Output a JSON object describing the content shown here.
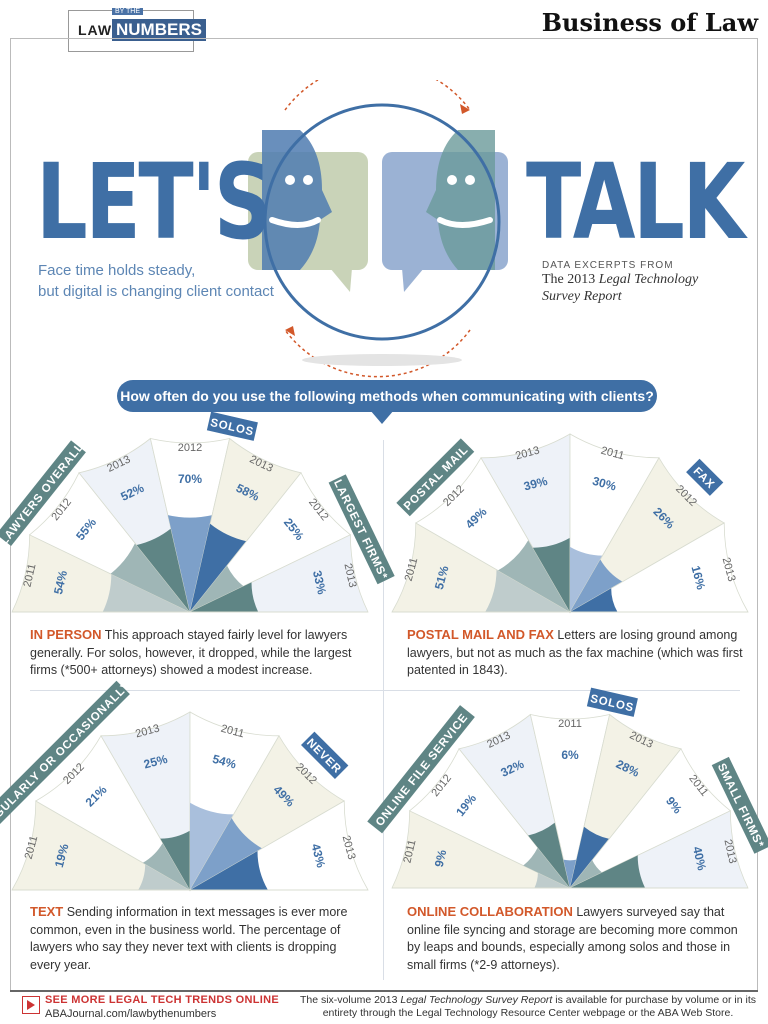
{
  "header": {
    "logo_law": "LAW",
    "logo_bythe": "BY THE",
    "logo_numbers": "NUMBERS",
    "section": "Business of Law"
  },
  "hero": {
    "title_left": "LET'S",
    "title_right": "TALK",
    "tagline_1": "Face time holds steady,",
    "tagline_2": "but digital is changing client contact",
    "excerpt_label": "DATA EXCERPTS FROM",
    "excerpt_report_prefix": "The 2013 ",
    "excerpt_report_italic_1": "Legal Technology",
    "excerpt_report_italic_2": "Survey Report"
  },
  "question": "How often do you use the following methods when communicating with clients?",
  "captions": {
    "in_person": {
      "head": "IN PERSON",
      "text": " This approach stayed fairly level for lawyers generally. For solos, however, it dropped, while the largest firms (*500+ attorneys) showed a modest increase."
    },
    "postal": {
      "head": "POSTAL MAIL AND FAX",
      "text": " Letters are losing ground among lawyers, but not as much as the fax machine (which was first patented in 1843)."
    },
    "text": {
      "head": "TEXT",
      "text": " Sending information in text messages is ever more common, even in the business world. The percentage of lawyers who say they never text with clients is dropping every year."
    },
    "online": {
      "head": "ONLINE COLLABORATION",
      "text": " Lawyers surveyed say that online file syncing and storage are becoming more common by leaps and bounds, especially among solos and those in small firms (*2-9 attorneys)."
    }
  },
  "footer": {
    "more": "SEE MORE LEGAL TECH TRENDS ONLINE",
    "url": "ABAJournal.com/lawbythenumbers",
    "note_prefix": "The six-volume 2013 ",
    "note_italic": "Legal Technology Survey Report",
    "note_suffix": " is available for purchase by volume or in its entirety through the Legal Technology Resource Center webpage or the ABA Web Store."
  },
  "chart_data": [
    {
      "type": "pie",
      "panel": "in_person",
      "title": "IN PERSON",
      "groups": [
        {
          "name": "LAWYERS OVERALL",
          "years": [
            "2011",
            "2012",
            "2013"
          ],
          "values": [
            54,
            55,
            52
          ]
        },
        {
          "name": "SOLOS",
          "years": [
            "2012",
            "2013"
          ],
          "values": [
            70,
            58
          ]
        },
        {
          "name": "LARGEST FIRMS*",
          "years": [
            "2012",
            "2013"
          ],
          "values": [
            25,
            33
          ]
        }
      ]
    },
    {
      "type": "pie",
      "panel": "postal",
      "title": "POSTAL MAIL AND FAX",
      "groups": [
        {
          "name": "POSTAL MAIL",
          "years": [
            "2011",
            "2012",
            "2013"
          ],
          "values": [
            51,
            49,
            39
          ]
        },
        {
          "name": "FAX",
          "years": [
            "2011",
            "2012",
            "2013"
          ],
          "values": [
            30,
            26,
            16
          ]
        }
      ]
    },
    {
      "type": "pie",
      "panel": "text",
      "title": "TEXT",
      "groups": [
        {
          "name": "REGULARLY OR OCCASIONALLY",
          "years": [
            "2011",
            "2012",
            "2013"
          ],
          "values": [
            19,
            21,
            25
          ]
        },
        {
          "name": "NEVER",
          "years": [
            "2011",
            "2012",
            "2013"
          ],
          "values": [
            54,
            49,
            43
          ]
        }
      ]
    },
    {
      "type": "pie",
      "panel": "online",
      "title": "ONLINE COLLABORATION",
      "groups": [
        {
          "name": "ONLINE FILE SERVICE",
          "years": [
            "2011",
            "2012",
            "2013"
          ],
          "values": [
            9,
            19,
            32
          ]
        },
        {
          "name": "SOLOS",
          "years": [
            "2011",
            "2013"
          ],
          "values": [
            6,
            28
          ]
        },
        {
          "name": "SMALL FIRMS*",
          "years": [
            "2011",
            "2013"
          ],
          "values": [
            9,
            40
          ]
        }
      ]
    }
  ],
  "colors": {
    "blue": "#3f6fa5",
    "teal": "#5f8585",
    "orange": "#d2582a",
    "olive_light": "#c9d3b8"
  }
}
